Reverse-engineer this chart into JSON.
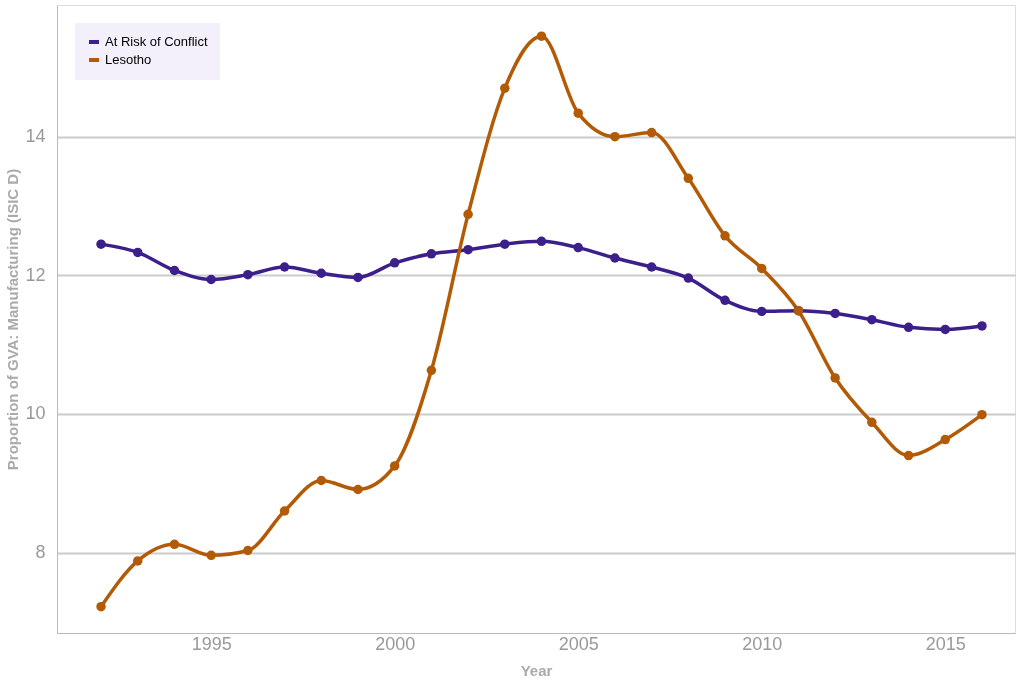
{
  "chart_data": {
    "type": "line",
    "xlabel": "Year",
    "ylabel": "Proportion of GVA: Manufacturing (ISIC D)",
    "x": [
      1992,
      1993,
      1994,
      1995,
      1996,
      1997,
      1998,
      1999,
      2000,
      2001,
      2002,
      2003,
      2004,
      2005,
      2006,
      2007,
      2008,
      2009,
      2010,
      2011,
      2012,
      2013,
      2014,
      2015,
      2016
    ],
    "series": [
      {
        "name": "At Risk of Conflict",
        "color": "#3c1f8b",
        "values": [
          12.45,
          12.33,
          12.07,
          11.94,
          12.01,
          12.12,
          12.03,
          11.97,
          12.18,
          12.31,
          12.37,
          12.45,
          12.49,
          12.4,
          12.25,
          12.12,
          11.96,
          11.64,
          11.48,
          11.49,
          11.45,
          11.36,
          11.25,
          11.22,
          11.27
        ]
      },
      {
        "name": "Lesotho",
        "color": "#b35a06",
        "values": [
          7.22,
          7.88,
          8.12,
          7.96,
          8.03,
          8.6,
          9.04,
          8.91,
          9.25,
          10.63,
          12.88,
          14.7,
          15.45,
          14.34,
          14.0,
          14.06,
          13.4,
          12.57,
          12.1,
          11.49,
          10.52,
          9.88,
          9.4,
          9.63,
          9.99
        ]
      }
    ],
    "xlim": [
      1990.8,
      2016.9
    ],
    "xticks": [
      1995,
      2000,
      2005,
      2010,
      2015
    ],
    "ylim": [
      6.84,
      15.9
    ],
    "yticks": [
      8,
      10,
      12,
      14
    ],
    "grid": "y",
    "legend": "top left",
    "marker": "circle",
    "line_style": "solid"
  }
}
